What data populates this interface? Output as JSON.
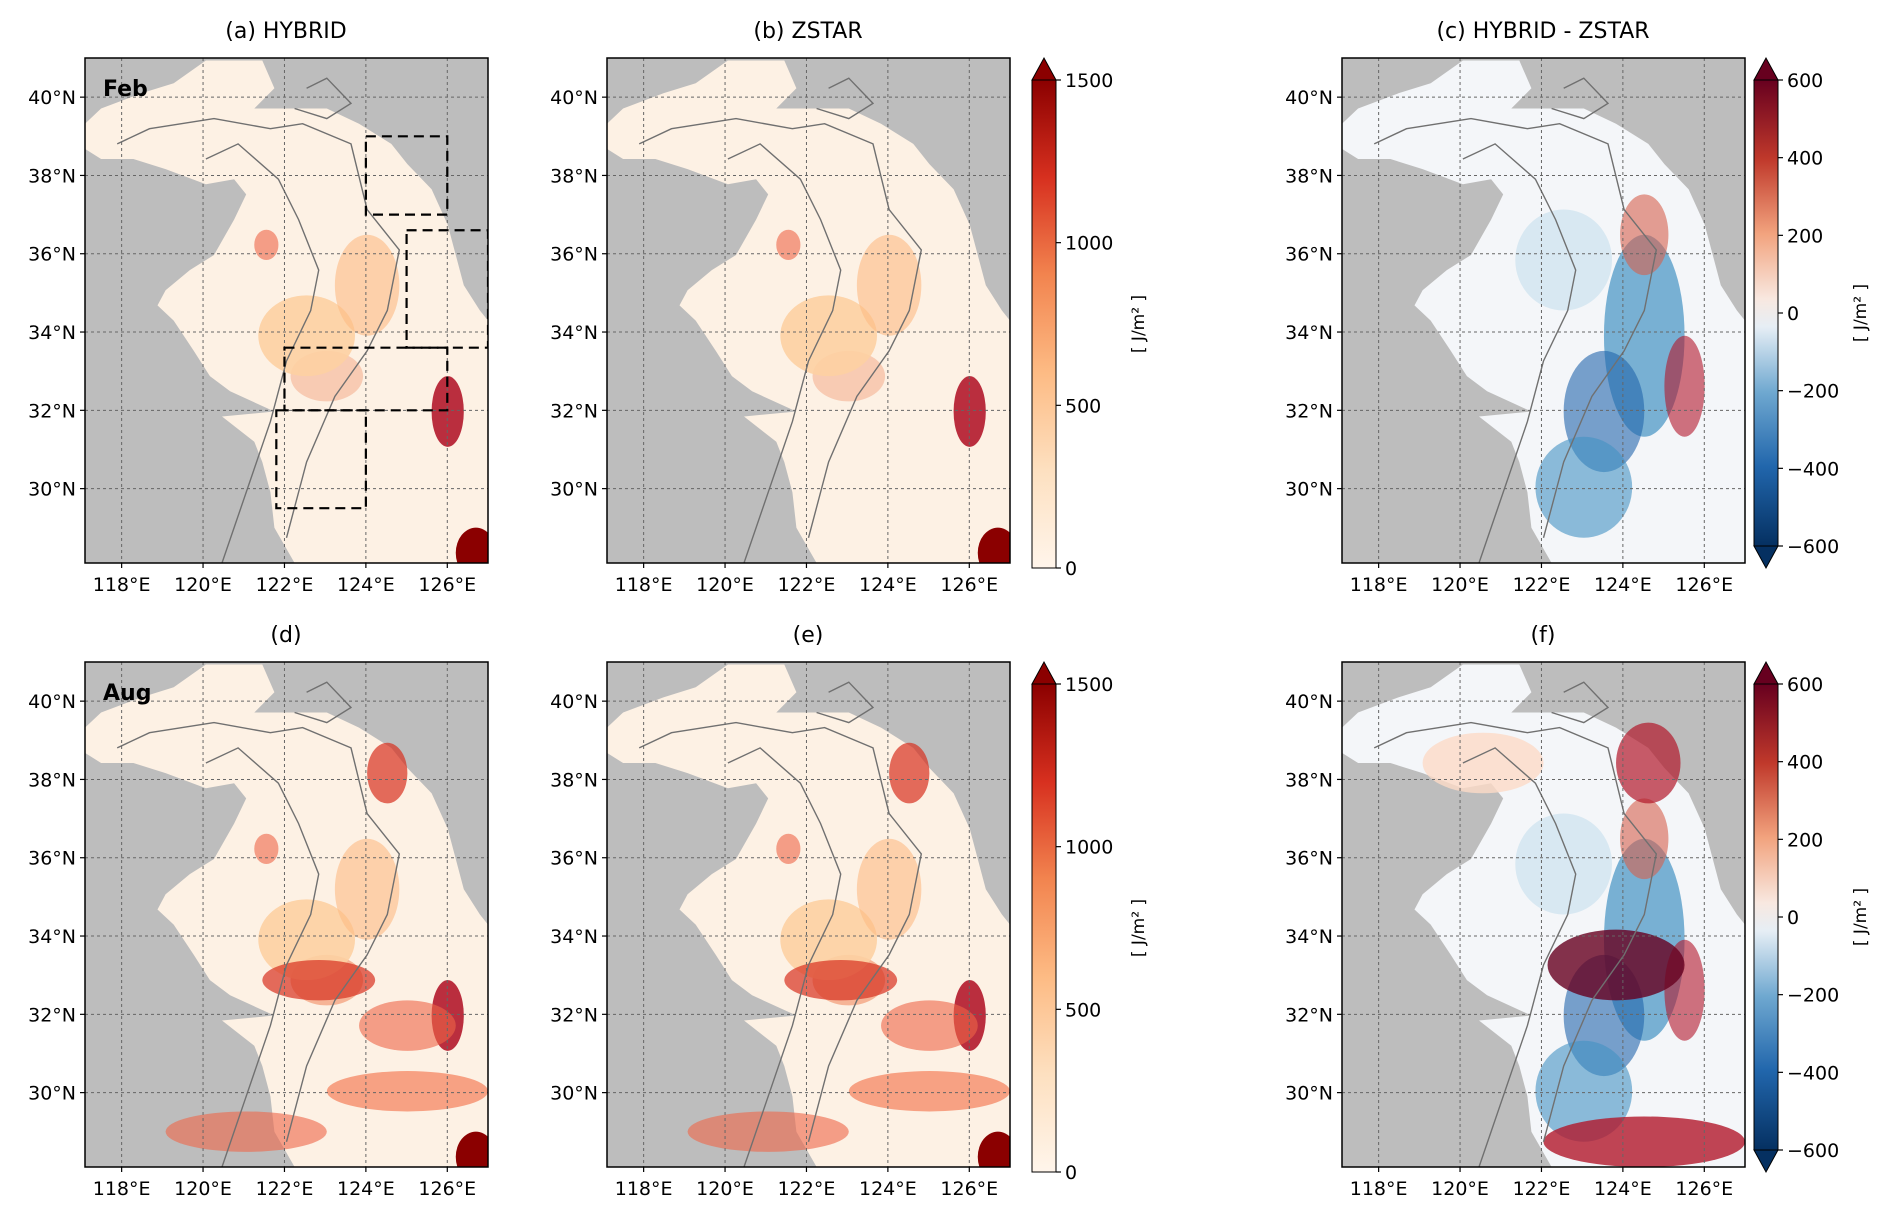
{
  "figure": {
    "panels": [
      {
        "id": "a",
        "title": "(a) HYBRID",
        "month": "Feb",
        "kind": "energy",
        "boxes": true
      },
      {
        "id": "b",
        "title": "(b) ZSTAR",
        "month": "",
        "kind": "energy",
        "boxes": false
      },
      {
        "id": "c",
        "title": "(c) HYBRID - ZSTAR",
        "month": "",
        "kind": "diff",
        "boxes": false
      },
      {
        "id": "d",
        "title": "(d)",
        "month": "Aug",
        "kind": "energy",
        "boxes": false
      },
      {
        "id": "e",
        "title": "(e)",
        "month": "",
        "kind": "energy",
        "boxes": false
      },
      {
        "id": "f",
        "title": "(f)",
        "month": "",
        "kind": "diff",
        "boxes": false
      }
    ],
    "lat_ticks": [
      "30°N",
      "32°N",
      "34°N",
      "36°N",
      "38°N",
      "40°N"
    ],
    "lon_ticks": [
      "118°E",
      "120°E",
      "122°E",
      "124°E",
      "126°E"
    ],
    "colorbars": [
      {
        "id": "energy",
        "ticks": [
          "0",
          "500",
          "1000",
          "1500"
        ],
        "unit": "[ J/m² ]"
      },
      {
        "id": "diff",
        "ticks": [
          "−600",
          "−400",
          "−200",
          "0",
          "200",
          "400",
          "600"
        ],
        "unit": "[ J/m² ]"
      }
    ],
    "colors": {
      "land": "#bdbdbd",
      "ocean_low": "#fdf1e4",
      "energy_high": "#8b0000",
      "diff_neg": "#053061",
      "diff_pos": "#67001f",
      "contour": "#707070"
    }
  }
}
